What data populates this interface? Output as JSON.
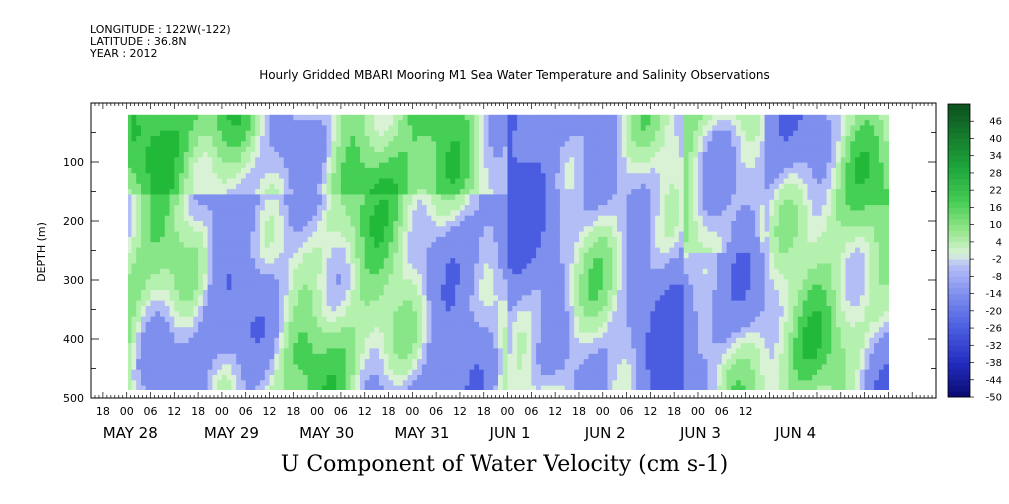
{
  "header": {
    "longitude": "LONGITUDE : 122W(-122)",
    "latitude": "LATITUDE : 36.8N",
    "year": "YEAR : 2012"
  },
  "chart_data": {
    "type": "heatmap",
    "title": "Hourly Gridded MBARI Mooring M1 Sea Water Temperature and Salinity Observations",
    "xlabel": "U Component of Water Velocity (cm s-1)",
    "ylabel": "DEPTH (m)",
    "y_reversed": true,
    "y_ticks": [
      "100",
      "200",
      "300",
      "400",
      "500"
    ],
    "y_tick_values": [
      100,
      200,
      300,
      400,
      500
    ],
    "ylim": [
      500,
      0
    ],
    "x_hour_ticks": [
      "18",
      "00",
      "06",
      "12",
      "18",
      "00",
      "06",
      "12",
      "18",
      "00",
      "06",
      "12",
      "18",
      "00",
      "06",
      "12",
      "18",
      "00",
      "06",
      "12",
      "18",
      "00",
      "06",
      "12",
      "18",
      "00",
      "06",
      "12"
    ],
    "x_date_labels": [
      "MAY 28",
      "MAY 29",
      "MAY 30",
      "MAY 31",
      "JUN  1",
      "JUN  2",
      "JUN  3",
      "JUN  4"
    ],
    "xlim_hours": [
      -9,
      204
    ],
    "data_hours": [
      0,
      191
    ],
    "data_depth": [
      20,
      488
    ],
    "colorbar": {
      "levels": [
        "46",
        "40",
        "34",
        "28",
        "22",
        "16",
        "10",
        "4",
        "-2",
        "-8",
        "-14",
        "-20",
        "-26",
        "-32",
        "-38",
        "-44",
        "-50"
      ],
      "range": [
        -50,
        52
      ]
    },
    "grid": false
  },
  "colors": {
    "negative_strong": "#4a5de0",
    "negative_light": "#b3bdf6",
    "near_zero": "#d9f2d6",
    "positive_light": "#88e688",
    "positive_strong": "#22b838",
    "positive_max": "#0d5e1e",
    "negative_max": "#0a0a70"
  }
}
